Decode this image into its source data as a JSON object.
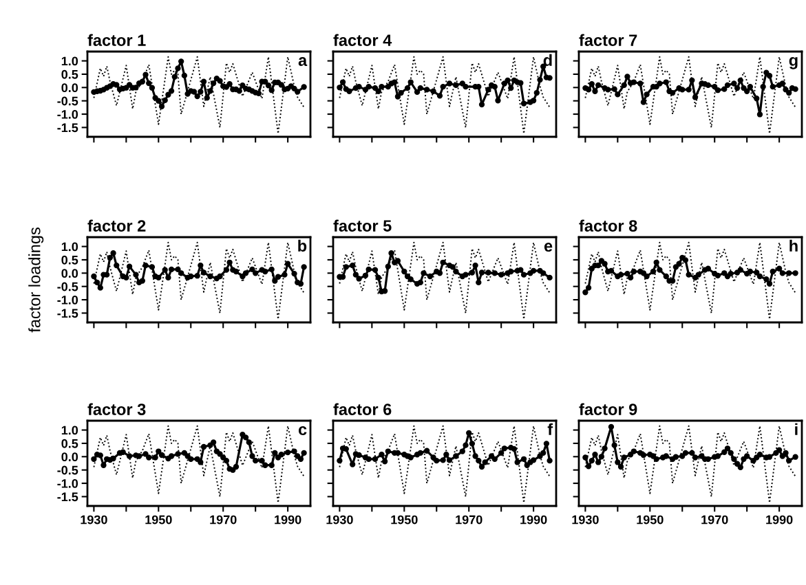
{
  "chart_data": [
    {
      "type": "line",
      "title": "factor 1",
      "annotations": [
        "a"
      ],
      "tick_labels": "y",
      "xlim": [
        1928,
        1997
      ],
      "ylim": [
        -1.85,
        1.35
      ],
      "xticks": [
        1930,
        1940,
        1950,
        1960,
        1970,
        1980,
        1990
      ],
      "yticks": [
        {
          "value": -1.5,
          "label": "-1.5"
        },
        {
          "value": -1,
          "label": "-1.0"
        },
        {
          "value": -0.5,
          "label": "-0.5"
        },
        {
          "value": 0,
          "label": "0.0"
        },
        {
          "value": 0.5,
          "label": "0.5"
        },
        {
          "value": 1,
          "label": "1.0"
        }
      ],
      "grid": false,
      "legend": false,
      "series": [
        {
          "color": "#000000",
          "line_style": "dotted",
          "marker": "none",
          "x": [
            1930,
            1932,
            1933,
            1934,
            1935,
            1937,
            1940,
            1942,
            1943,
            1945,
            1947,
            1950,
            1953,
            1954,
            1955,
            1956,
            1957,
            1962,
            1964,
            1966,
            1969,
            1971,
            1972,
            1973,
            1976,
            1979,
            1982,
            1984,
            1987,
            1990,
            1992,
            1993,
            1995
          ],
          "values": [
            -0.39,
            0.72,
            0.42,
            0.8,
            0.22,
            -0.68,
            0.83,
            -0.8,
            -0.16,
            0.22,
            0.86,
            -1.38,
            1.15,
            0.5,
            0.65,
            0.5,
            -1.0,
            1.15,
            -0.71,
            0.4,
            -1.5,
            0.92,
            0.57,
            0.89,
            -0.33,
            0.57,
            -0.42,
            1.15,
            -1.73,
            1.15,
            0.05,
            -0.36,
            -0.74
          ]
        },
        {
          "color": "#000000",
          "line_style": "solid",
          "marker": "circle",
          "x": [
            1930,
            1931,
            1932,
            1933,
            1934,
            1935,
            1936,
            1937,
            1938,
            1939,
            1940,
            1941,
            1942,
            1943,
            1944,
            1945,
            1946,
            1947,
            1948,
            1949,
            1950,
            1951,
            1952,
            1953,
            1954,
            1955,
            1956,
            1957,
            1958,
            1959,
            1960,
            1961,
            1962,
            1963,
            1964,
            1965,
            1966,
            1967,
            1968,
            1969,
            1970,
            1971,
            1972,
            1973,
            1974,
            1975,
            1976,
            1977,
            1978,
            1979,
            1980,
            1981,
            1982,
            1983,
            1984,
            1985,
            1986,
            1987,
            1988,
            1989,
            1990,
            1991,
            1992,
            1993,
            1995
          ],
          "values": [
            -0.17,
            -0.14,
            -0.12,
            -0.08,
            -0.01,
            0.05,
            0.13,
            0.1,
            -0.07,
            -0.04,
            -0.01,
            0.1,
            -0.01,
            0,
            0.16,
            0.22,
            0.48,
            0.16,
            -0.01,
            -0.39,
            -0.5,
            -0.71,
            -0.48,
            -0.27,
            -0.13,
            0.4,
            0.72,
            0.98,
            0.45,
            -0.24,
            -0.13,
            -0.16,
            -0.33,
            -0.16,
            0.22,
            -0.39,
            -0.13,
            0.16,
            0.34,
            0.25,
            0.05,
            0.02,
            0.13,
            -0.07,
            -0.07,
            -0.13,
            0.08,
            -0.04,
            -0.07,
            -0.13,
            -0.19,
            -0.22,
            0.22,
            0.22,
            0.08,
            -0.1,
            0.19,
            0.19,
            0.1,
            -0.07,
            -0.04,
            0.05,
            -0.04,
            -0.16,
            0.02
          ]
        }
      ]
    },
    {
      "type": "line",
      "title": "factor 4",
      "annotations": [
        "d"
      ],
      "tick_labels": false,
      "xlim": [
        1928,
        1997
      ],
      "ylim": [
        -1.85,
        1.35
      ],
      "xticks": [
        1930,
        1940,
        1950,
        1960,
        1970,
        1980,
        1990
      ],
      "yticks": [
        -1.5,
        -1,
        -0.5,
        0,
        0.5,
        1
      ],
      "grid": false,
      "legend": false,
      "series": [
        {
          "color": "#000000",
          "line_style": "dotted",
          "marker": "none",
          "x": [
            1930,
            1932,
            1933,
            1934,
            1935,
            1937,
            1940,
            1942,
            1943,
            1945,
            1947,
            1950,
            1953,
            1954,
            1955,
            1956,
            1957,
            1962,
            1964,
            1966,
            1969,
            1971,
            1972,
            1973,
            1976,
            1979,
            1982,
            1984,
            1987,
            1990,
            1992,
            1993,
            1995
          ],
          "values": [
            -0.39,
            0.72,
            0.42,
            0.8,
            0.22,
            -0.68,
            0.83,
            -0.8,
            -0.16,
            0.22,
            0.86,
            -1.38,
            1.15,
            0.5,
            0.65,
            0.5,
            -1.0,
            1.15,
            -0.71,
            0.4,
            -1.5,
            0.92,
            0.57,
            0.89,
            -0.33,
            0.57,
            -0.42,
            1.15,
            -1.73,
            1.15,
            0.05,
            -0.36,
            -0.74
          ]
        },
        {
          "color": "#000000",
          "line_style": "solid",
          "marker": "circle",
          "x": [
            1930,
            1931,
            1932,
            1933,
            1935,
            1936,
            1938,
            1939,
            1941,
            1942,
            1943,
            1945,
            1946,
            1947,
            1948,
            1949,
            1951,
            1952,
            1954,
            1955,
            1957,
            1959,
            1961,
            1962,
            1964,
            1966,
            1968,
            1969,
            1972,
            1973,
            1974,
            1976,
            1977,
            1978,
            1979,
            1981,
            1982,
            1983,
            1984,
            1985,
            1986,
            1987,
            1989,
            1990,
            1991,
            1992,
            1993,
            1994,
            1995
          ],
          "values": [
            0,
            0.2,
            -0.06,
            -0.14,
            -0.02,
            0.03,
            -0.08,
            0.03,
            -0.02,
            -0.14,
            0.03,
            0.03,
            0.15,
            0.2,
            -0.34,
            -0.2,
            -0.02,
            0.2,
            -0.17,
            -0.02,
            -0.08,
            -0.14,
            -0.31,
            0.03,
            0.15,
            0.09,
            0.15,
            0.03,
            0.03,
            0.03,
            -0.64,
            -0.08,
            0.09,
            0.03,
            -0.49,
            0.15,
            0.27,
            -0.02,
            0.27,
            0.2,
            0.17,
            -0.6,
            -0.55,
            -0.49,
            -0.2,
            0.29,
            0.79,
            0.38,
            0.36
          ]
        }
      ]
    },
    {
      "type": "line",
      "title": "factor 7",
      "annotations": [
        "g"
      ],
      "tick_labels": false,
      "xlim": [
        1928,
        1997
      ],
      "ylim": [
        -1.85,
        1.35
      ],
      "xticks": [
        1930,
        1940,
        1950,
        1960,
        1970,
        1980,
        1990
      ],
      "yticks": [
        -1.5,
        -1,
        -0.5,
        0,
        0.5,
        1
      ],
      "grid": false,
      "legend": false,
      "series": [
        {
          "color": "#000000",
          "line_style": "dotted",
          "marker": "none",
          "x": [
            1930,
            1932,
            1933,
            1934,
            1935,
            1937,
            1940,
            1942,
            1943,
            1945,
            1947,
            1950,
            1953,
            1954,
            1955,
            1956,
            1957,
            1962,
            1964,
            1966,
            1969,
            1971,
            1972,
            1973,
            1976,
            1979,
            1982,
            1984,
            1987,
            1990,
            1992,
            1993,
            1995
          ],
          "values": [
            -0.39,
            0.72,
            0.42,
            0.8,
            0.22,
            -0.68,
            0.83,
            -0.8,
            -0.16,
            0.22,
            0.86,
            -1.38,
            1.15,
            0.5,
            0.65,
            0.5,
            -1.0,
            1.15,
            -0.71,
            0.4,
            -1.5,
            0.92,
            0.57,
            0.89,
            -0.33,
            0.57,
            -0.42,
            1.15,
            -1.73,
            1.15,
            0.05,
            -0.36,
            -0.74
          ]
        },
        {
          "color": "#000000",
          "line_style": "solid",
          "marker": "circle",
          "x": [
            1930,
            1931,
            1932,
            1933,
            1934,
            1936,
            1937,
            1939,
            1940,
            1942,
            1943,
            1944,
            1945,
            1947,
            1948,
            1949,
            1951,
            1952,
            1953,
            1955,
            1956,
            1957,
            1959,
            1960,
            1962,
            1963,
            1964,
            1966,
            1967,
            1968,
            1970,
            1971,
            1973,
            1974,
            1976,
            1977,
            1978,
            1979,
            1980,
            1981,
            1983,
            1984,
            1985,
            1986,
            1987,
            1988,
            1990,
            1991,
            1992,
            1993,
            1994,
            1995
          ],
          "values": [
            -0.02,
            -0.08,
            0.13,
            -0.14,
            0.09,
            -0.02,
            -0.08,
            -0.06,
            -0.26,
            0.09,
            0.41,
            0.17,
            0.2,
            0.15,
            -0.55,
            -0.26,
            0.03,
            0.03,
            0.15,
            0.2,
            -0.14,
            -0.2,
            -0.02,
            -0.08,
            -0.08,
            0.27,
            -0.37,
            0.15,
            0.13,
            0.09,
            0.03,
            -0.1,
            -0.06,
            0.09,
            0.15,
            -0.02,
            0.27,
            -0.02,
            -0.14,
            0.03,
            -0.41,
            -1.01,
            0.03,
            0.56,
            0.44,
            0.03,
            0.09,
            0.15,
            -0.08,
            -0.2,
            -0.02,
            -0.06
          ]
        }
      ]
    },
    {
      "type": "line",
      "title": "factor 2",
      "ylabel": "factor loadings",
      "annotations": [
        "b"
      ],
      "tick_labels": "y",
      "xlim": [
        1928,
        1997
      ],
      "ylim": [
        -1.85,
        1.35
      ],
      "xticks": [
        1930,
        1940,
        1950,
        1960,
        1970,
        1980,
        1990
      ],
      "yticks": [
        {
          "value": -1.5,
          "label": "-1.5"
        },
        {
          "value": -1,
          "label": "-1.0"
        },
        {
          "value": -0.5,
          "label": "-0.5"
        },
        {
          "value": 0,
          "label": "0.0"
        },
        {
          "value": 0.5,
          "label": "0.5"
        },
        {
          "value": 1,
          "label": "1.0"
        }
      ],
      "grid": false,
      "legend": false,
      "series": [
        {
          "color": "#000000",
          "line_style": "dotted",
          "marker": "none",
          "x": [
            1930,
            1932,
            1933,
            1934,
            1935,
            1937,
            1940,
            1942,
            1943,
            1945,
            1947,
            1950,
            1953,
            1954,
            1955,
            1956,
            1957,
            1962,
            1964,
            1966,
            1969,
            1971,
            1972,
            1973,
            1976,
            1979,
            1982,
            1984,
            1987,
            1990,
            1992,
            1993,
            1995
          ],
          "values": [
            -0.39,
            0.72,
            0.42,
            0.8,
            0.22,
            -0.68,
            0.83,
            -0.8,
            -0.16,
            0.22,
            0.86,
            -1.38,
            1.15,
            0.5,
            0.65,
            0.5,
            -1.0,
            1.15,
            -0.71,
            0.4,
            -1.5,
            0.92,
            0.57,
            0.89,
            -0.33,
            0.57,
            -0.42,
            1.15,
            -1.73,
            1.15,
            0.05,
            -0.36,
            -0.74
          ]
        },
        {
          "color": "#000000",
          "line_style": "solid",
          "marker": "circle",
          "x": [
            1930,
            1931,
            1932,
            1933,
            1934,
            1935,
            1936,
            1937,
            1939,
            1940,
            1941,
            1943,
            1944,
            1945,
            1946,
            1948,
            1949,
            1950,
            1952,
            1953,
            1954,
            1956,
            1957,
            1959,
            1960,
            1962,
            1963,
            1964,
            1966,
            1968,
            1969,
            1971,
            1972,
            1973,
            1974,
            1976,
            1977,
            1979,
            1980,
            1982,
            1983,
            1985,
            1986,
            1987,
            1989,
            1990,
            1992,
            1993,
            1994,
            1995
          ],
          "values": [
            -0.12,
            -0.35,
            -0.55,
            -0.06,
            -0.06,
            0.58,
            0.75,
            0.29,
            -0.12,
            -0.17,
            0.25,
            -0.06,
            -0.35,
            -0.29,
            0.29,
            0.23,
            -0.12,
            -0.17,
            0.12,
            -0.17,
            0.14,
            0.14,
            0,
            -0.17,
            -0.12,
            -0.1,
            0.29,
            0.02,
            -0.12,
            -0.2,
            -0.12,
            0.12,
            0.4,
            0.12,
            0.06,
            -0.12,
            0,
            0.14,
            0,
            0.12,
            0.06,
            0.14,
            -0.29,
            -0.14,
            -0.06,
            0.35,
            -0.02,
            -0.35,
            -0.4,
            0.23
          ]
        }
      ]
    },
    {
      "type": "line",
      "title": "factor 5",
      "annotations": [
        "e"
      ],
      "tick_labels": false,
      "xlim": [
        1928,
        1997
      ],
      "ylim": [
        -1.85,
        1.35
      ],
      "xticks": [
        1930,
        1940,
        1950,
        1960,
        1970,
        1980,
        1990
      ],
      "yticks": [
        -1.5,
        -1,
        -0.5,
        0,
        0.5,
        1
      ],
      "grid": false,
      "legend": false,
      "series": [
        {
          "color": "#000000",
          "line_style": "dotted",
          "marker": "none",
          "x": [
            1930,
            1932,
            1933,
            1934,
            1935,
            1937,
            1940,
            1942,
            1943,
            1945,
            1947,
            1950,
            1953,
            1954,
            1955,
            1956,
            1957,
            1962,
            1964,
            1966,
            1969,
            1971,
            1972,
            1973,
            1976,
            1979,
            1982,
            1984,
            1987,
            1990,
            1992,
            1993,
            1995
          ],
          "values": [
            -0.39,
            0.72,
            0.42,
            0.8,
            0.22,
            -0.68,
            0.83,
            -0.8,
            -0.16,
            0.22,
            0.86,
            -1.38,
            1.15,
            0.5,
            0.65,
            0.5,
            -1.0,
            1.15,
            -0.71,
            0.4,
            -1.5,
            0.92,
            0.57,
            0.89,
            -0.33,
            0.57,
            -0.42,
            1.15,
            -1.73,
            1.15,
            0.05,
            -0.36,
            -0.74
          ]
        },
        {
          "color": "#000000",
          "line_style": "solid",
          "marker": "circle",
          "x": [
            1930,
            1931,
            1932,
            1934,
            1935,
            1936,
            1938,
            1939,
            1941,
            1942,
            1943,
            1944,
            1945,
            1946,
            1947,
            1948,
            1950,
            1951,
            1952,
            1954,
            1955,
            1956,
            1958,
            1960,
            1961,
            1962,
            1964,
            1965,
            1966,
            1968,
            1969,
            1971,
            1972,
            1973,
            1974,
            1976,
            1978,
            1980,
            1982,
            1983,
            1985,
            1986,
            1987,
            1989,
            1990,
            1992,
            1993,
            1995
          ],
          "values": [
            -0.14,
            -0.14,
            0.23,
            0.29,
            -0.06,
            -0.21,
            -0.09,
            0.14,
            0.12,
            -0.17,
            -0.69,
            -0.67,
            0.25,
            0.75,
            0.4,
            0.46,
            0.06,
            -0.12,
            -0.23,
            -0.4,
            -0.35,
            0,
            -0.12,
            0.06,
            0,
            0.4,
            0.29,
            0.23,
            0.06,
            -0.12,
            -0.06,
            0.02,
            0.29,
            -0.35,
            0.02,
            0.02,
            0,
            -0.06,
            0,
            0.06,
            0.09,
            0.12,
            -0.06,
            0,
            0.09,
            0.09,
            0,
            -0.17
          ]
        }
      ]
    },
    {
      "type": "line",
      "title": "factor 8",
      "annotations": [
        "h"
      ],
      "tick_labels": false,
      "xlim": [
        1928,
        1997
      ],
      "ylim": [
        -1.85,
        1.35
      ],
      "xticks": [
        1930,
        1940,
        1950,
        1960,
        1970,
        1980,
        1990
      ],
      "yticks": [
        -1.5,
        -1,
        -0.5,
        0,
        0.5,
        1
      ],
      "grid": false,
      "legend": false,
      "series": [
        {
          "color": "#000000",
          "line_style": "dotted",
          "marker": "none",
          "x": [
            1930,
            1932,
            1933,
            1934,
            1935,
            1937,
            1940,
            1942,
            1943,
            1945,
            1947,
            1950,
            1953,
            1954,
            1955,
            1956,
            1957,
            1962,
            1964,
            1966,
            1969,
            1971,
            1972,
            1973,
            1976,
            1979,
            1982,
            1984,
            1987,
            1990,
            1992,
            1993,
            1995
          ],
          "values": [
            -0.39,
            0.72,
            0.42,
            0.8,
            0.22,
            -0.68,
            0.83,
            -0.8,
            -0.16,
            0.22,
            0.86,
            -1.38,
            1.15,
            0.5,
            0.65,
            0.5,
            -1.0,
            1.15,
            -0.71,
            0.4,
            -1.5,
            0.92,
            0.57,
            0.89,
            -0.33,
            0.57,
            -0.42,
            1.15,
            -1.73,
            1.15,
            0.05,
            -0.36,
            -0.74
          ]
        },
        {
          "color": "#000000",
          "line_style": "solid",
          "marker": "circle",
          "x": [
            1930,
            1931,
            1932,
            1933,
            1934,
            1935,
            1936,
            1937,
            1938,
            1940,
            1941,
            1943,
            1944,
            1945,
            1947,
            1948,
            1949,
            1951,
            1952,
            1953,
            1955,
            1956,
            1957,
            1958,
            1959,
            1960,
            1961,
            1962,
            1964,
            1965,
            1967,
            1968,
            1970,
            1971,
            1973,
            1974,
            1975,
            1977,
            1978,
            1980,
            1981,
            1983,
            1984,
            1986,
            1987,
            1988,
            1990,
            1991,
            1993,
            1995
          ],
          "values": [
            -0.72,
            -0.55,
            0.17,
            0.29,
            0.29,
            0.46,
            0.35,
            0.06,
            0.09,
            -0.12,
            -0.06,
            -0.02,
            -0.17,
            0.06,
            0.06,
            0,
            -0.12,
            0.06,
            0.4,
            0.12,
            -0.12,
            -0.29,
            -0.29,
            0.23,
            0.35,
            0.58,
            0.49,
            -0.06,
            -0.17,
            -0.06,
            0.12,
            0.17,
            -0.02,
            -0.09,
            0,
            -0.12,
            -0.02,
            0.02,
            0.12,
            -0.02,
            0.06,
            0.02,
            -0.12,
            -0.23,
            -0.4,
            0.06,
            0.17,
            0,
            0,
            0
          ]
        }
      ]
    },
    {
      "type": "line",
      "title": "factor 3",
      "annotations": [
        "c"
      ],
      "xlim": [
        1928,
        1997
      ],
      "ylim": [
        -1.85,
        1.35
      ],
      "xticks": [
        1930,
        {
          "value": 1940,
          "label": null
        },
        1950,
        {
          "value": 1960,
          "label": null
        },
        1970,
        {
          "value": 1980,
          "label": null
        },
        1990
      ],
      "yticks": [
        {
          "value": -1.5,
          "label": "-1.5"
        },
        {
          "value": -1,
          "label": "-1.0"
        },
        {
          "value": -0.5,
          "label": "-0.5"
        },
        {
          "value": 0,
          "label": "0.0"
        },
        {
          "value": 0.5,
          "label": "0.5"
        },
        {
          "value": 1,
          "label": "1.0"
        }
      ],
      "grid": false,
      "legend": false,
      "series": [
        {
          "color": "#000000",
          "line_style": "dotted",
          "marker": "none",
          "x": [
            1930,
            1932,
            1933,
            1934,
            1935,
            1937,
            1940,
            1942,
            1943,
            1945,
            1947,
            1950,
            1953,
            1954,
            1955,
            1956,
            1957,
            1962,
            1964,
            1966,
            1969,
            1971,
            1972,
            1973,
            1976,
            1979,
            1982,
            1984,
            1987,
            1990,
            1992,
            1993,
            1995
          ],
          "values": [
            -0.39,
            0.72,
            0.42,
            0.8,
            0.22,
            -0.68,
            0.83,
            -0.8,
            -0.16,
            0.22,
            0.86,
            -1.38,
            1.15,
            0.5,
            0.65,
            0.5,
            -1.0,
            1.15,
            -0.71,
            0.4,
            -1.5,
            0.92,
            0.57,
            0.89,
            -0.33,
            0.57,
            -0.42,
            1.15,
            -1.73,
            1.15,
            0.05,
            -0.36,
            -0.74
          ]
        },
        {
          "color": "#000000",
          "line_style": "solid",
          "marker": "circle",
          "x": [
            1930,
            1931,
            1932,
            1933,
            1934,
            1935,
            1936,
            1938,
            1939,
            1941,
            1943,
            1944,
            1946,
            1947,
            1949,
            1950,
            1951,
            1953,
            1954,
            1956,
            1958,
            1959,
            1960,
            1962,
            1963,
            1964,
            1966,
            1967,
            1968,
            1969,
            1970,
            1971,
            1972,
            1973,
            1974,
            1976,
            1977,
            1978,
            1979,
            1980,
            1982,
            1983,
            1985,
            1986,
            1987,
            1988,
            1990,
            1992,
            1993,
            1994,
            1995
          ],
          "values": [
            -0.09,
            0.08,
            0.05,
            -0.32,
            -0.09,
            -0.12,
            -0.07,
            0.14,
            0.17,
            0.02,
            0.05,
            0.02,
            0.1,
            -0.03,
            -0.03,
            0.2,
            0.06,
            -0.07,
            0.02,
            0.1,
            0.14,
            0.02,
            -0.09,
            -0.09,
            -0.21,
            0.37,
            0.43,
            0.54,
            0.2,
            0.1,
            -0.03,
            -0.15,
            -0.46,
            -0.5,
            -0.38,
            0.83,
            0.72,
            0.54,
            0.02,
            -0.15,
            -0.15,
            -0.32,
            -0.32,
            0.14,
            -0.03,
            0.08,
            0.16,
            0.2,
            0.02,
            -0.09,
            0.14
          ]
        }
      ]
    },
    {
      "type": "line",
      "title": "factor 6",
      "annotations": [
        "f"
      ],
      "tick_labels": "x",
      "xlim": [
        1928,
        1997
      ],
      "ylim": [
        -1.85,
        1.35
      ],
      "xticks": [
        1930,
        {
          "value": 1940,
          "label": null
        },
        1950,
        {
          "value": 1960,
          "label": null
        },
        1970,
        {
          "value": 1980,
          "label": null
        },
        1990
      ],
      "yticks": [
        -1.5,
        -1,
        -0.5,
        0,
        0.5,
        1
      ],
      "grid": false,
      "legend": false,
      "series": [
        {
          "color": "#000000",
          "line_style": "dotted",
          "marker": "none",
          "x": [
            1930,
            1932,
            1933,
            1934,
            1935,
            1937,
            1940,
            1942,
            1943,
            1945,
            1947,
            1950,
            1953,
            1954,
            1955,
            1956,
            1957,
            1962,
            1964,
            1966,
            1969,
            1971,
            1972,
            1973,
            1976,
            1979,
            1982,
            1984,
            1987,
            1990,
            1992,
            1993,
            1995
          ],
          "values": [
            -0.39,
            0.72,
            0.42,
            0.8,
            0.22,
            -0.68,
            0.83,
            -0.8,
            -0.16,
            0.22,
            0.86,
            -1.38,
            1.15,
            0.5,
            0.65,
            0.5,
            -1.0,
            1.15,
            -0.71,
            0.4,
            -1.5,
            0.92,
            0.57,
            0.89,
            -0.33,
            0.57,
            -0.42,
            1.15,
            -1.73,
            1.15,
            0.05,
            -0.36,
            -0.74
          ]
        },
        {
          "color": "#000000",
          "line_style": "solid",
          "marker": "circle",
          "x": [
            1930,
            1931,
            1932,
            1934,
            1935,
            1936,
            1938,
            1939,
            1941,
            1943,
            1944,
            1945,
            1947,
            1948,
            1950,
            1951,
            1952,
            1954,
            1955,
            1957,
            1959,
            1960,
            1962,
            1963,
            1964,
            1966,
            1968,
            1969,
            1970,
            1971,
            1972,
            1973,
            1974,
            1975,
            1977,
            1978,
            1980,
            1981,
            1983,
            1984,
            1985,
            1987,
            1988,
            1989,
            1990,
            1992,
            1993,
            1994,
            1995
          ],
          "values": [
            -0.15,
            0.31,
            0.29,
            -0.29,
            0.1,
            0.06,
            -0.03,
            -0.09,
            -0.09,
            0.08,
            -0.18,
            0.2,
            0.14,
            0.14,
            0.08,
            0.02,
            -0.03,
            0.08,
            0.14,
            0.22,
            -0.03,
            -0.15,
            -0.13,
            0.08,
            -0.13,
            0.02,
            0.2,
            0.43,
            0.89,
            0.49,
            0.02,
            -0.15,
            -0.38,
            -0.21,
            0.02,
            -0.09,
            0.14,
            0.31,
            0.34,
            0.29,
            -0.21,
            -0.09,
            -0.32,
            -0.21,
            -0.13,
            0.02,
            0.14,
            0.49,
            -0.15
          ]
        }
      ]
    },
    {
      "type": "line",
      "title": "factor 9",
      "annotations": [
        "i"
      ],
      "tick_labels": "x",
      "xlim": [
        1928,
        1997
      ],
      "ylim": [
        -1.85,
        1.35
      ],
      "xticks": [
        1930,
        {
          "value": 1940,
          "label": null
        },
        1950,
        {
          "value": 1960,
          "label": null
        },
        1970,
        {
          "value": 1980,
          "label": null
        },
        1990
      ],
      "yticks": [
        -1.5,
        -1,
        -0.5,
        0,
        0.5,
        1
      ],
      "grid": false,
      "legend": false,
      "series": [
        {
          "color": "#000000",
          "line_style": "dotted",
          "marker": "none",
          "x": [
            1930,
            1932,
            1933,
            1934,
            1935,
            1937,
            1940,
            1942,
            1943,
            1945,
            1947,
            1950,
            1953,
            1954,
            1955,
            1956,
            1957,
            1962,
            1964,
            1966,
            1969,
            1971,
            1972,
            1973,
            1976,
            1979,
            1982,
            1984,
            1987,
            1990,
            1992,
            1993,
            1995
          ],
          "values": [
            -0.39,
            0.72,
            0.42,
            0.8,
            0.22,
            -0.68,
            0.83,
            -0.8,
            -0.16,
            0.22,
            0.86,
            -1.38,
            1.15,
            0.5,
            0.65,
            0.5,
            -1.0,
            1.15,
            -0.71,
            0.4,
            -1.5,
            0.92,
            0.57,
            0.89,
            -0.33,
            0.57,
            -0.42,
            1.15,
            -1.73,
            1.15,
            0.05,
            -0.36,
            -0.74
          ]
        },
        {
          "color": "#000000",
          "line_style": "solid",
          "marker": "circle",
          "x": [
            1930,
            1931,
            1932,
            1933,
            1934,
            1935,
            1936,
            1938,
            1939,
            1940,
            1941,
            1942,
            1944,
            1945,
            1947,
            1948,
            1950,
            1951,
            1952,
            1954,
            1955,
            1957,
            1958,
            1960,
            1961,
            1963,
            1964,
            1966,
            1967,
            1968,
            1970,
            1971,
            1973,
            1974,
            1975,
            1976,
            1977,
            1978,
            1979,
            1980,
            1982,
            1983,
            1984,
            1986,
            1987,
            1989,
            1990,
            1991,
            1992,
            1993,
            1995
          ],
          "values": [
            -0.03,
            -0.36,
            -0.15,
            0.08,
            -0.21,
            0,
            0.31,
            1.12,
            0.43,
            -0.21,
            -0.38,
            -0.03,
            0.08,
            0.2,
            0.14,
            0.06,
            0.08,
            0.02,
            -0.09,
            -0.03,
            0.02,
            -0.09,
            -0.01,
            0.02,
            0.14,
            0.14,
            -0.03,
            0.02,
            -0.09,
            -0.09,
            -0.01,
            0.02,
            0.17,
            0.31,
            0.14,
            -0.09,
            -0.27,
            -0.4,
            -0.09,
            0.02,
            -0.15,
            -0.03,
            0.08,
            -0.03,
            -0.01,
            0.14,
            0.25,
            0.02,
            0.14,
            -0.15,
            -0.01
          ]
        }
      ]
    }
  ]
}
